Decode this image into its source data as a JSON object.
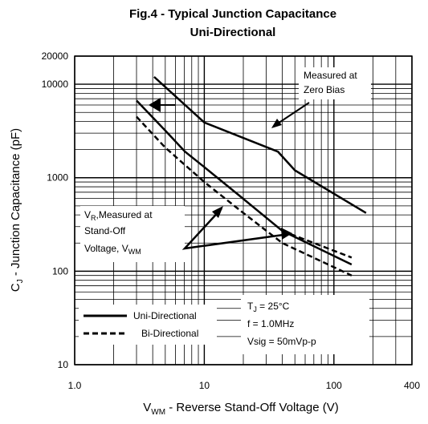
{
  "chart_data": {
    "type": "line",
    "title": "Fig.4 - Typical Junction Capacitance",
    "subtitle": "Uni-Directional",
    "x_label": {
      "main": "V",
      "sub": "WM",
      "rest": " - Reverse Stand-Off Voltage (V)"
    },
    "y_label": {
      "main": "C",
      "sub": "J",
      "rest": " - Junction Capacitance (pF)"
    },
    "log_x": true,
    "log_y": true,
    "grid": true,
    "xlim": [
      1,
      400
    ],
    "ylim": [
      10,
      20000
    ],
    "xticks": [
      {
        "value": 1,
        "label": "1.0"
      },
      10,
      100,
      400
    ],
    "yticks": [
      10,
      100,
      1000,
      10000,
      20000
    ],
    "series": [
      {
        "name": "Uni-Directional",
        "color": "#000000",
        "dashed": false,
        "x": [
          4.1,
          10,
          37,
          50,
          177
        ],
        "values": [
          12000,
          3900,
          1900,
          1200,
          420
        ]
      },
      {
        "name": "Uni-Directional",
        "color": "#000000",
        "dashed": false,
        "x": [
          3.0,
          5,
          7.1,
          10,
          19,
          40,
          137
        ],
        "values": [
          6700,
          3200,
          1900,
          1300,
          630,
          270,
          118
        ]
      },
      {
        "name": "Bi-Directional",
        "color": "#000000",
        "dashed": true,
        "x": [
          3.0,
          5,
          10,
          20,
          40,
          137
        ],
        "values": [
          4500,
          2100,
          900,
          420,
          200,
          90
        ]
      },
      {
        "name": "Bi-Directional",
        "color": "#000000",
        "dashed": true,
        "x": [
          40,
          137
        ],
        "values": [
          270,
          140
        ]
      }
    ],
    "annotations": {
      "zero_bias": [
        "Measured at",
        "Zero Bias"
      ],
      "vr": {
        "main": "V",
        "sub": "R",
        "rest": ",Measured at",
        "line2": "Stand-Off",
        "line3": "Voltage, V",
        "line3_sub": "WM"
      },
      "conditions": {
        "tj_main": "T",
        "tj_sub": "J",
        "tj_rest": " = 25°C",
        "f": "f = 1.0MHz",
        "vsig": "Vsig = 50mVp-p"
      }
    }
  }
}
